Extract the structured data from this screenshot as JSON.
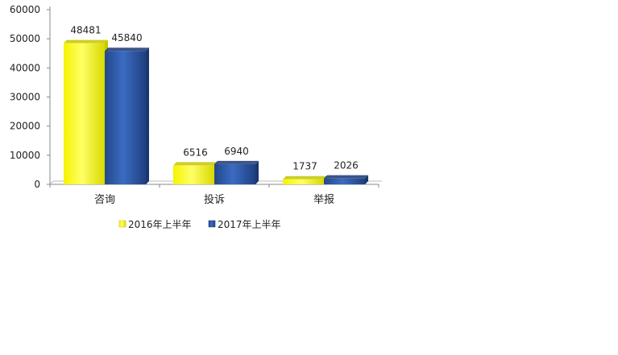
{
  "chart_data": {
    "type": "bar",
    "categories": [
      "咨询",
      "投诉",
      "举报"
    ],
    "series": [
      {
        "name": "2016年上半年",
        "values": [
          48481,
          6516,
          1737
        ],
        "color": "#ffff33",
        "dark_color": "#c6c600"
      },
      {
        "name": "2017年上半年",
        "values": [
          45840,
          6940,
          2026
        ],
        "color": "#2e5aa8",
        "dark_color": "#1a3670"
      }
    ],
    "y_ticks": [
      0,
      10000,
      20000,
      30000,
      40000,
      50000,
      60000
    ],
    "ylim": [
      0,
      60000
    ],
    "grid": false,
    "legend_position": "bottom",
    "title": "",
    "xlabel": "",
    "ylabel": ""
  }
}
